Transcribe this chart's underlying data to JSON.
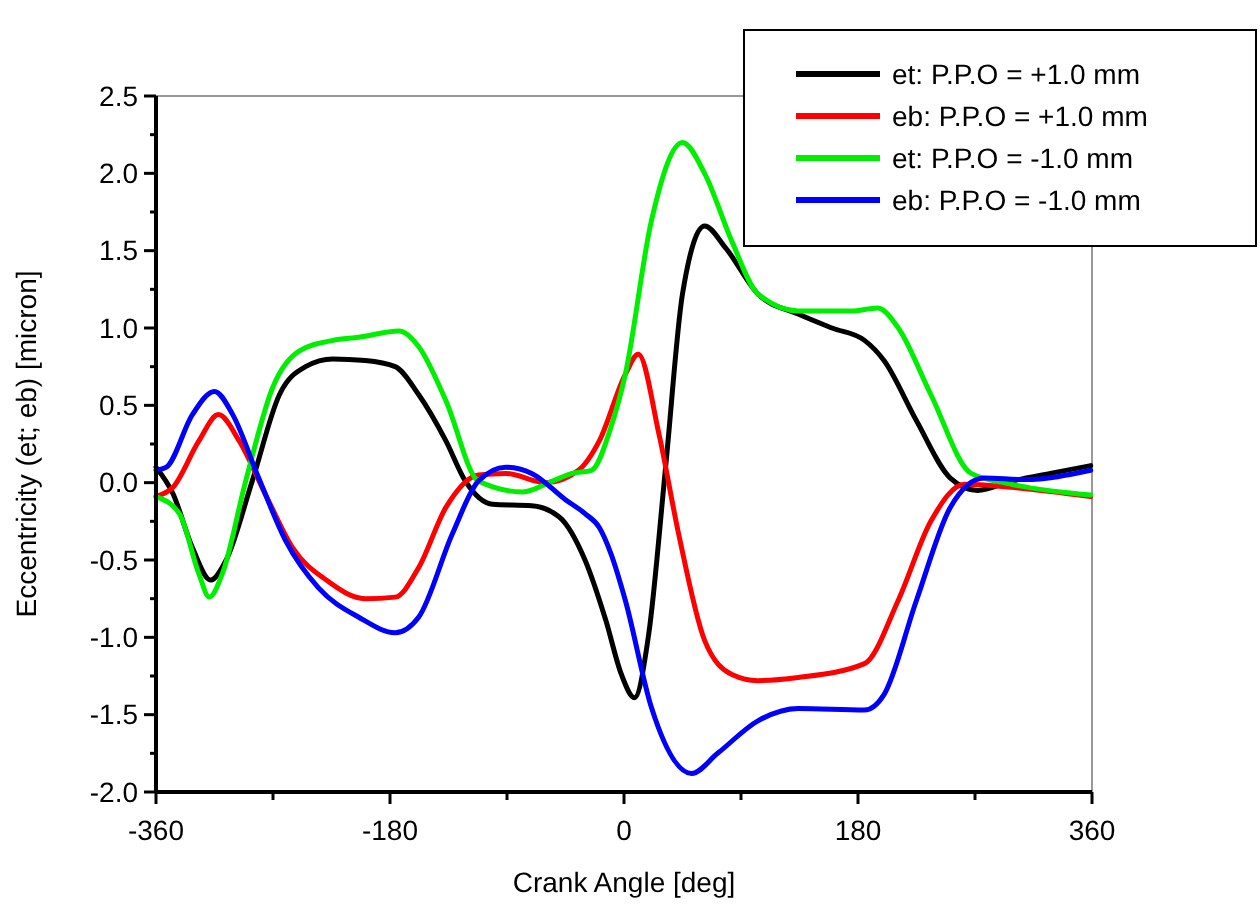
{
  "chart_data": {
    "type": "line",
    "xlabel": "Crank Angle [deg]",
    "ylabel": "Eccentricity (et; eb) [micron]",
    "xlim": [
      -360,
      360
    ],
    "xticks": [
      -360,
      {
        "value": -270,
        "label": null
      },
      -180,
      {
        "value": -90,
        "label": null
      },
      0,
      {
        "value": 90,
        "label": null
      },
      180,
      {
        "value": 270,
        "label": null
      },
      360
    ],
    "ylim": [
      -2.0,
      2.5
    ],
    "yticks": [
      {
        "value": -2.0,
        "label": "-2.0"
      },
      {
        "value": -1.75,
        "label": null
      },
      {
        "value": -1.5,
        "label": "-1.5"
      },
      {
        "value": -1.25,
        "label": null
      },
      {
        "value": -1.0,
        "label": "-1.0"
      },
      {
        "value": -0.75,
        "label": null
      },
      {
        "value": -0.5,
        "label": "-0.5"
      },
      {
        "value": -0.25,
        "label": null
      },
      {
        "value": 0,
        "label": "0.0"
      },
      {
        "value": 0.25,
        "label": null
      },
      {
        "value": 0.5,
        "label": "0.5"
      },
      {
        "value": 0.75,
        "label": null
      },
      {
        "value": 1.0,
        "label": "1.0"
      },
      {
        "value": 1.25,
        "label": null
      },
      {
        "value": 1.5,
        "label": "1.5"
      },
      {
        "value": 1.75,
        "label": null
      },
      {
        "value": 2.0,
        "label": "2.0"
      },
      {
        "value": 2.25,
        "label": null
      },
      {
        "value": 2.5,
        "label": "2.5"
      }
    ],
    "grid": false,
    "legend": "top right",
    "marker": "none",
    "line_style": "solid",
    "series": [
      {
        "name": "et: P.P.O = +1.0 mm",
        "color": "#000000",
        "x": [
          -360,
          -347,
          -332,
          -318,
          -306,
          -286,
          -265,
          -245,
          -224,
          -199,
          -176,
          -158,
          -137,
          -122,
          -101,
          -71,
          -50,
          -30,
          -14,
          -2,
          8,
          19,
          32,
          45,
          62,
          78,
          103,
          134,
          160,
          185,
          200,
          225,
          251,
          272,
          298,
          328,
          359
        ],
        "values": [
          0.1,
          -0.07,
          -0.42,
          -0.63,
          -0.5,
          0.01,
          0.57,
          0.75,
          0.8,
          0.79,
          0.75,
          0.57,
          0.27,
          0.01,
          -0.14,
          -0.15,
          -0.22,
          -0.5,
          -0.89,
          -1.24,
          -1.39,
          -0.98,
          0.1,
          1.22,
          1.66,
          1.52,
          1.22,
          1.09,
          1.0,
          0.92,
          0.79,
          0.4,
          0.03,
          -0.05,
          0.01,
          0.06,
          0.11
        ]
      },
      {
        "name": "eb: P.P.O = +1.0 mm",
        "color": "#ff0000",
        "x": [
          -360,
          -347,
          -327,
          -312,
          -296,
          -275,
          -255,
          -229,
          -199,
          -176,
          -158,
          -137,
          -112,
          -91,
          -60,
          -35,
          -19,
          1,
          11,
          27,
          42,
          62,
          83,
          103,
          134,
          185,
          211,
          236,
          262,
          298,
          359
        ],
        "values": [
          -0.09,
          -0.03,
          0.27,
          0.44,
          0.27,
          -0.09,
          -0.42,
          -0.63,
          -0.75,
          -0.74,
          -0.55,
          -0.16,
          0.05,
          0.06,
          0.0,
          0.08,
          0.27,
          0.7,
          0.83,
          0.31,
          -0.33,
          -1.02,
          -1.24,
          -1.28,
          -1.26,
          -1.17,
          -0.76,
          -0.25,
          -0.01,
          -0.03,
          -0.09
        ]
      },
      {
        "name": "et: P.P.O = -1.0 mm",
        "color": "#00ee00",
        "x": [
          -360,
          -342,
          -327,
          -319,
          -309,
          -291,
          -270,
          -250,
          -224,
          -204,
          -173,
          -158,
          -137,
          -112,
          -78,
          -55,
          -40,
          -25,
          -10,
          1,
          21,
          45,
          62,
          83,
          103,
          134,
          175,
          195,
          211,
          236,
          267,
          298,
          359
        ],
        "values": [
          -0.09,
          -0.2,
          -0.59,
          -0.74,
          -0.59,
          0.01,
          0.62,
          0.85,
          0.92,
          0.94,
          0.98,
          0.88,
          0.53,
          0.01,
          -0.06,
          0.01,
          0.06,
          0.08,
          0.36,
          0.7,
          1.69,
          2.2,
          2.0,
          1.56,
          1.22,
          1.11,
          1.11,
          1.13,
          1.0,
          0.57,
          0.06,
          -0.01,
          -0.08
        ]
      },
      {
        "name": "eb: P.P.O = -1.0 mm",
        "color": "#0000ff",
        "x": [
          -360,
          -352,
          -332,
          -315,
          -301,
          -281,
          -260,
          -235,
          -204,
          -176,
          -158,
          -132,
          -112,
          -91,
          -71,
          -45,
          -30,
          -19,
          -10,
          1,
          21,
          52,
          72,
          103,
          134,
          185,
          200,
          225,
          251,
          277,
          308,
          359
        ],
        "values": [
          0.08,
          0.1,
          0.44,
          0.59,
          0.44,
          0.03,
          -0.38,
          -0.68,
          -0.87,
          -0.97,
          -0.87,
          -0.33,
          0.01,
          0.1,
          0.06,
          -0.11,
          -0.2,
          -0.29,
          -0.46,
          -0.76,
          -1.45,
          -1.88,
          -1.75,
          -1.54,
          -1.46,
          -1.47,
          -1.37,
          -0.76,
          -0.16,
          0.03,
          0.02,
          0.08
        ]
      }
    ]
  }
}
